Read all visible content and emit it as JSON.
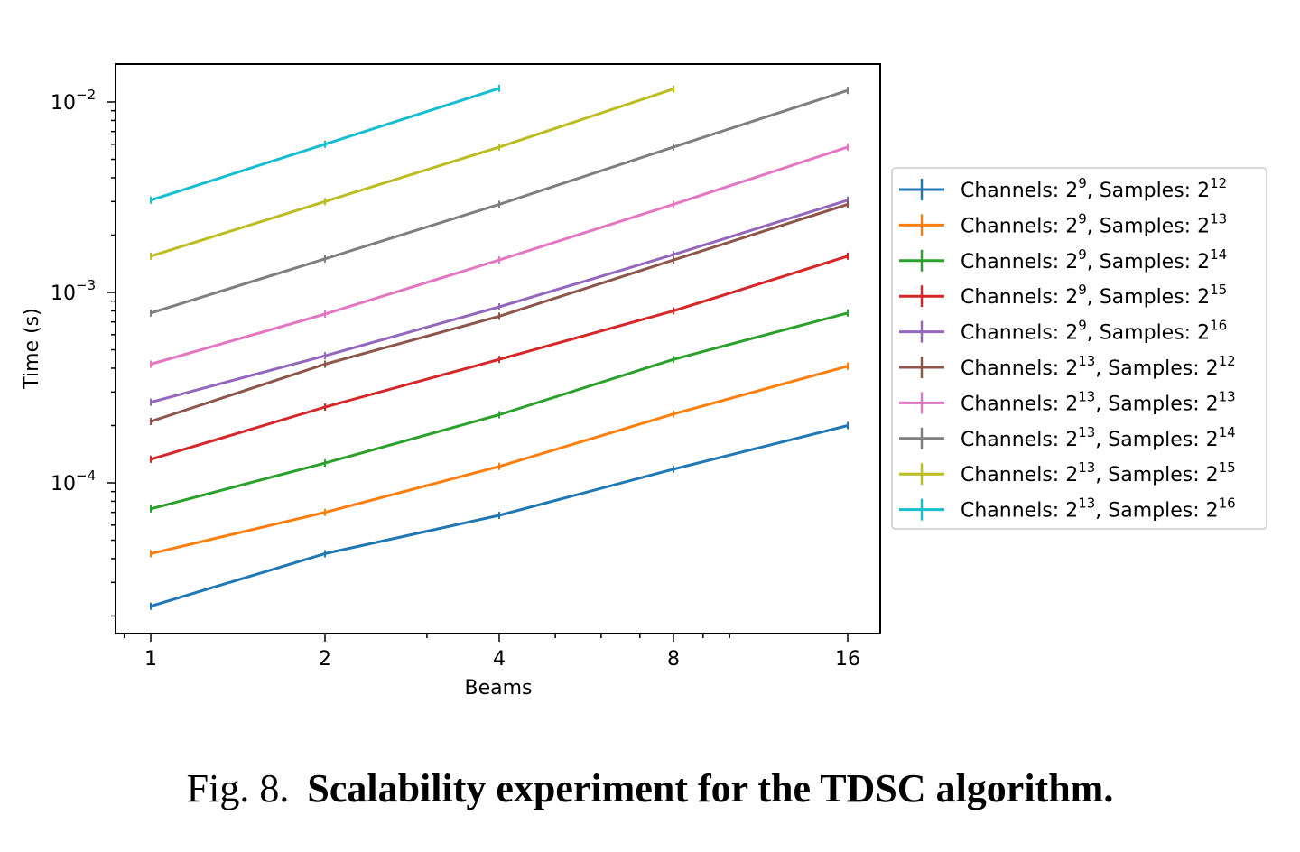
{
  "chart_data": {
    "type": "line",
    "xlabel": "Beams",
    "ylabel": "Time (s)",
    "x_scale": "log2",
    "y_scale": "log10",
    "x_ticks": [
      "1",
      "2",
      "4",
      "8",
      "16"
    ],
    "y_ticks": [
      {
        "base": "10",
        "exp": "−2",
        "value": 0.01
      },
      {
        "base": "10",
        "exp": "−3",
        "value": 0.001
      },
      {
        "base": "10",
        "exp": "−4",
        "value": 0.0001
      }
    ],
    "legend_position": "outside-right",
    "grid": false,
    "series": [
      {
        "channels": "2",
        "channels_exp": "9",
        "samples": "2",
        "samples_exp": "12",
        "color": "#1f77b4",
        "x": [
          1,
          2,
          4,
          8,
          16
        ],
        "values": [
          2.25e-05,
          4.25e-05,
          6.75e-05,
          0.000118,
          0.0002
        ]
      },
      {
        "channels": "2",
        "channels_exp": "9",
        "samples": "2",
        "samples_exp": "13",
        "color": "#ff7f0e",
        "x": [
          1,
          2,
          4,
          8,
          16
        ],
        "values": [
          4.25e-05,
          7e-05,
          0.000122,
          0.00023,
          0.00041
        ]
      },
      {
        "channels": "2",
        "channels_exp": "9",
        "samples": "2",
        "samples_exp": "14",
        "color": "#2ca02c",
        "x": [
          1,
          2,
          4,
          8,
          16
        ],
        "values": [
          7.3e-05,
          0.000127,
          0.000228,
          0.000445,
          0.00078
        ]
      },
      {
        "channels": "2",
        "channels_exp": "9",
        "samples": "2",
        "samples_exp": "15",
        "color": "#d62728",
        "x": [
          1,
          2,
          4,
          8,
          16
        ],
        "values": [
          0.000133,
          0.00025,
          0.000445,
          0.0008,
          0.00155
        ]
      },
      {
        "channels": "2",
        "channels_exp": "9",
        "samples": "2",
        "samples_exp": "16",
        "color": "#9467bd",
        "x": [
          1,
          2,
          4,
          8,
          16
        ],
        "values": [
          0.000265,
          0.000465,
          0.00084,
          0.00158,
          0.00305
        ]
      },
      {
        "channels": "2",
        "channels_exp": "13",
        "samples": "2",
        "samples_exp": "12",
        "color": "#8c564b",
        "x": [
          1,
          2,
          4,
          8,
          16
        ],
        "values": [
          0.00021,
          0.00042,
          0.00075,
          0.00148,
          0.0029
        ]
      },
      {
        "channels": "2",
        "channels_exp": "13",
        "samples": "2",
        "samples_exp": "13",
        "color": "#e377c2",
        "x": [
          1,
          2,
          4,
          8,
          16
        ],
        "values": [
          0.00042,
          0.00077,
          0.00148,
          0.0029,
          0.0058
        ]
      },
      {
        "channels": "2",
        "channels_exp": "13",
        "samples": "2",
        "samples_exp": "14",
        "color": "#7f7f7f",
        "x": [
          1,
          2,
          4,
          8,
          16
        ],
        "values": [
          0.00078,
          0.0015,
          0.0029,
          0.0058,
          0.0115
        ]
      },
      {
        "channels": "2",
        "channels_exp": "13",
        "samples": "2",
        "samples_exp": "15",
        "color": "#bcbd22",
        "x": [
          1,
          2,
          4,
          8
        ],
        "values": [
          0.00155,
          0.003,
          0.0058,
          0.0117
        ]
      },
      {
        "channels": "2",
        "channels_exp": "13",
        "samples": "2",
        "samples_exp": "16",
        "color": "#17becf",
        "x": [
          1,
          2,
          4
        ],
        "values": [
          0.00305,
          0.006,
          0.0118
        ]
      }
    ]
  },
  "caption": {
    "label": "Fig. 8.",
    "text": "Scalability experiment for the TDSC algorithm."
  }
}
